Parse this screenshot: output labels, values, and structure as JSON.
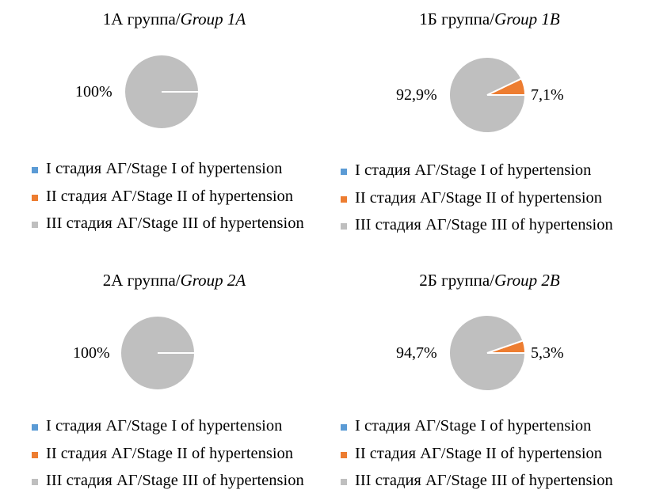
{
  "chart_data": [
    {
      "type": "pie",
      "title_prefix": "1А группа/",
      "title_italic": "Group 1A",
      "categories": [
        "I стадия АГ/Stage I of hypertension",
        "II стадия АГ/Stage II of hypertension",
        "III стадия АГ/Stage III of hypertension"
      ],
      "values": [
        0,
        0,
        100
      ],
      "data_labels": [
        "",
        "",
        "100%"
      ],
      "colors": [
        "#5b9bd5",
        "#ed7d31",
        "#bfbfbf"
      ],
      "legend_position": "bottom"
    },
    {
      "type": "pie",
      "title_prefix": "1Б группа/",
      "title_italic": "Group 1B",
      "categories": [
        "I стадия АГ/Stage I of hypertension",
        "II стадия АГ/Stage II of hypertension",
        "III стадия АГ/Stage III of hypertension"
      ],
      "values": [
        0,
        7.1,
        92.9
      ],
      "data_labels": [
        "",
        "7,1%",
        "92,9%"
      ],
      "colors": [
        "#5b9bd5",
        "#ed7d31",
        "#bfbfbf"
      ],
      "legend_position": "bottom"
    },
    {
      "type": "pie",
      "title_prefix": "2А группа/",
      "title_italic": "Group 2A",
      "categories": [
        "I стадия АГ/Stage I of hypertension",
        "II стадия АГ/Stage II of hypertension",
        "III стадия АГ/Stage III of hypertension"
      ],
      "values": [
        0,
        0,
        100
      ],
      "data_labels": [
        "",
        "",
        "100%"
      ],
      "colors": [
        "#5b9bd5",
        "#ed7d31",
        "#bfbfbf"
      ],
      "legend_position": "bottom"
    },
    {
      "type": "pie",
      "title_prefix": "2Б группа/",
      "title_italic": "Group 2B",
      "categories": [
        "I стадия АГ/Stage I of hypertension",
        "II стадия АГ/Stage II of hypertension",
        "III стадия АГ/Stage III of hypertension"
      ],
      "values": [
        0,
        5.3,
        94.7
      ],
      "data_labels": [
        "",
        "5,3%",
        "94,7%"
      ],
      "colors": [
        "#5b9bd5",
        "#ed7d31",
        "#bfbfbf"
      ],
      "legend_position": "bottom"
    }
  ]
}
